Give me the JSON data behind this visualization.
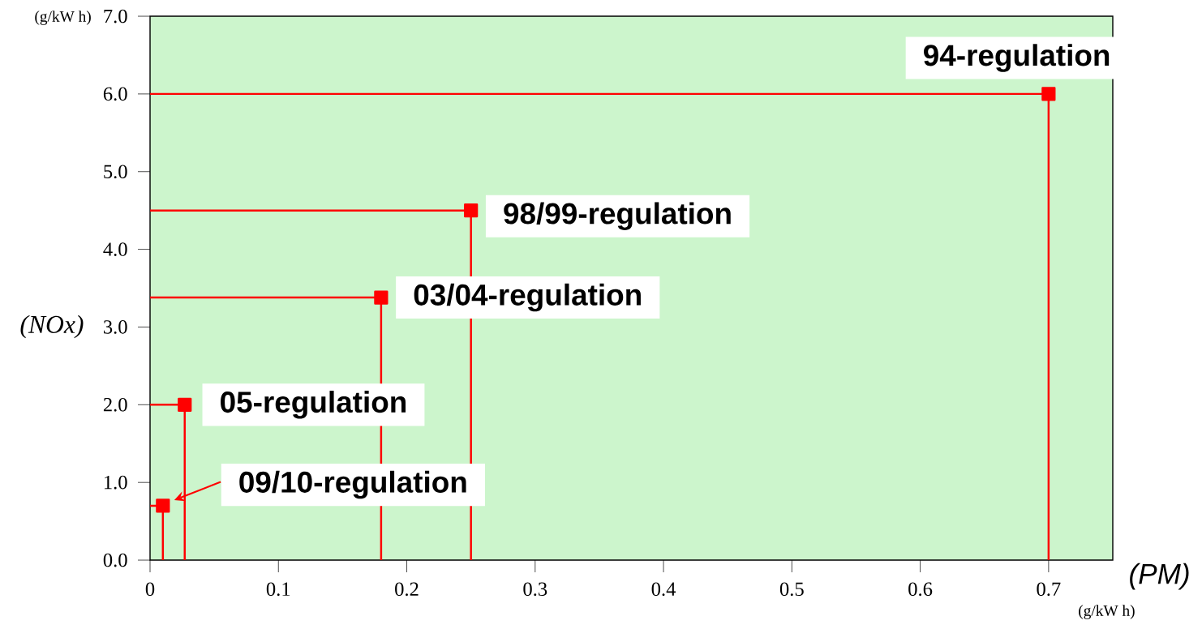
{
  "chart_data": {
    "type": "line",
    "xlabel": "(PM)",
    "ylabel": "(NOx)",
    "series": [
      {
        "color": "#ff0000",
        "x": [
          0,
          0.7,
          0.7
        ],
        "values": [
          6.0,
          6.0,
          0
        ]
      },
      {
        "color": "#ff0000",
        "x": [
          0,
          0.25,
          0.25
        ],
        "values": [
          4.5,
          4.5,
          0
        ]
      },
      {
        "color": "#ff0000",
        "x": [
          0,
          0.18,
          0.18
        ],
        "values": [
          3.38,
          3.38,
          0
        ]
      },
      {
        "color": "#ff0000",
        "x": [
          0,
          0.027,
          0.027
        ],
        "values": [
          2.0,
          2.0,
          0
        ]
      },
      {
        "color": "#ff0000",
        "x": [
          0,
          0.01,
          0.01
        ],
        "values": [
          0.7,
          0.7,
          0
        ]
      },
      {
        "type": "scatter",
        "marker": "square",
        "color": "#ff0000",
        "x": [
          0.7,
          0.25,
          0.18,
          0.027,
          0.01
        ],
        "values": [
          6.0,
          4.5,
          3.38,
          2.0,
          0.7
        ]
      }
    ],
    "line_style": "solid",
    "grid": false,
    "xlim": [
      0,
      0.75
    ],
    "ylim": [
      0,
      7
    ],
    "xticks": [
      0,
      0.1,
      0.2,
      0.3,
      0.4,
      0.5,
      0.6,
      0.7
    ],
    "yticks": [
      {
        "value": 0,
        "label": "0.0"
      },
      {
        "value": 1,
        "label": "1.0"
      },
      {
        "value": 2,
        "label": "2.0"
      },
      {
        "value": 3,
        "label": "3.0"
      },
      {
        "value": 4,
        "label": "4.0"
      },
      {
        "value": 5,
        "label": "5.0"
      },
      {
        "value": 6,
        "label": "6.0"
      },
      {
        "value": 7,
        "label": "7.0"
      }
    ],
    "annotations": [
      "(g/kW h)",
      "(g/kW h)",
      {
        "text": "94-regulation",
        "x": 0.7,
        "y": 6.0
      },
      {
        "text": "98/99-regulation",
        "x": 0.25,
        "y": 4.5
      },
      {
        "text": "03/04-regulation",
        "x": 0.18,
        "y": 3.38
      },
      {
        "text": "05-regulation",
        "x": 0.027,
        "y": 2.0
      },
      "09/10-regulation"
    ]
  }
}
